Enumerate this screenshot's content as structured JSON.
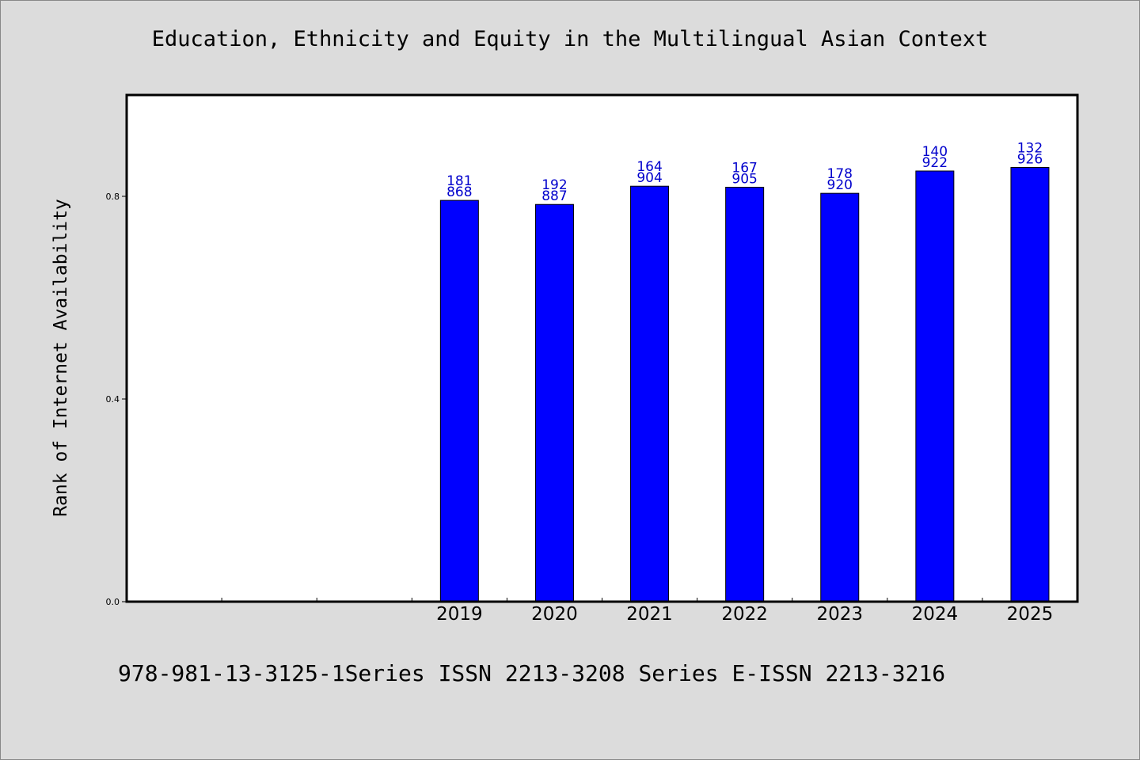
{
  "chart_data": {
    "type": "bar",
    "title": "Education, Ethnicity and Equity in the Multilingual Asian Context",
    "xlabel": "",
    "ylabel": "Rank of Internet Availability",
    "categories": [
      "",
      "",
      "",
      "2019",
      "2020",
      "2021",
      "2022",
      "2023",
      "2024",
      "2025"
    ],
    "values": [
      null,
      null,
      null,
      0.792,
      0.784,
      0.82,
      0.818,
      0.806,
      0.85,
      0.857
    ],
    "data_labels": [
      null,
      null,
      null,
      [
        "181",
        "868"
      ],
      [
        "192",
        "887"
      ],
      [
        "164",
        "904"
      ],
      [
        "167",
        "905"
      ],
      [
        "178",
        "920"
      ],
      [
        "140",
        "922"
      ],
      [
        "132",
        "926"
      ]
    ],
    "yticks": [
      "0.0",
      "0.4",
      "0.8"
    ],
    "ytick_values": [
      0.0,
      0.4,
      0.8
    ],
    "ylim": [
      0,
      1.0
    ],
    "grid": false,
    "bar_color": "#0000ff",
    "label_color": "#0000cc"
  },
  "footer": {
    "text": "978-981-13-3125-1Series ISSN 2213-3208 Series E-ISSN 2213-3216"
  }
}
